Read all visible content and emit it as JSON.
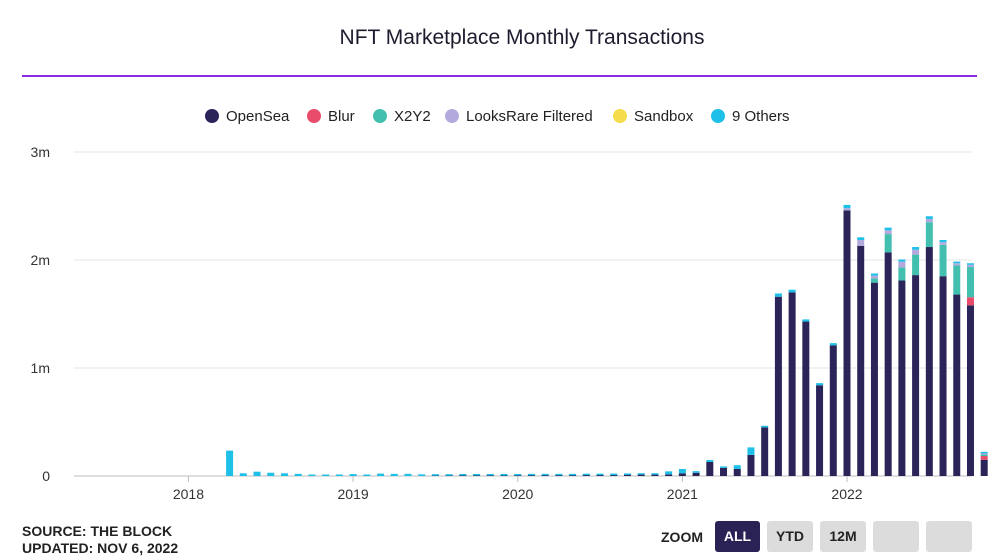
{
  "header": {
    "title": "NFT Marketplace Monthly Transactions"
  },
  "footer": {
    "source": "SOURCE: THE BLOCK",
    "updated": "UPDATED: NOV 6, 2022"
  },
  "zoom": {
    "label": "ZOOM",
    "buttons": [
      "ALL",
      "YTD",
      "12M",
      "",
      ""
    ],
    "active": "ALL"
  },
  "colors": {
    "OpenSea": "#2a2458",
    "Blur": "#e94b6b",
    "X2Y2": "#43bfb0",
    "LooksRare Filtered": "#b4a9dc",
    "Sandbox": "#f5dc4a",
    "9 Others": "#1ec0e8"
  },
  "chart_data": {
    "type": "bar",
    "stacked": true,
    "title": "NFT Marketplace Monthly Transactions",
    "xlabel": "",
    "ylabel": "",
    "ylim": [
      0,
      3000000
    ],
    "y_ticks": [
      "0",
      "1m",
      "2m",
      "3m"
    ],
    "x_ticks": [
      "2018",
      "2019",
      "2020",
      "2021",
      "2022"
    ],
    "grid": true,
    "legend_position": "top-center",
    "categories": [
      "2017-11",
      "2017-12",
      "2018-01",
      "2018-02",
      "2018-03",
      "2018-04",
      "2018-05",
      "2018-06",
      "2018-07",
      "2018-08",
      "2018-09",
      "2018-10",
      "2018-11",
      "2018-12",
      "2019-01",
      "2019-02",
      "2019-03",
      "2019-04",
      "2019-05",
      "2019-06",
      "2019-07",
      "2019-08",
      "2019-09",
      "2019-10",
      "2019-11",
      "2019-12",
      "2020-01",
      "2020-02",
      "2020-03",
      "2020-04",
      "2020-05",
      "2020-06",
      "2020-07",
      "2020-08",
      "2020-09",
      "2020-10",
      "2020-11",
      "2020-12",
      "2021-01",
      "2021-02",
      "2021-03",
      "2021-04",
      "2021-05",
      "2021-06",
      "2021-07",
      "2021-08",
      "2021-09",
      "2021-10",
      "2021-11",
      "2021-12",
      "2022-01",
      "2022-02",
      "2022-03",
      "2022-04",
      "2022-05",
      "2022-06",
      "2022-07",
      "2022-08",
      "2022-09",
      "2022-10",
      "2022-11"
    ],
    "series": [
      {
        "name": "OpenSea",
        "values": [
          0,
          0,
          0,
          0,
          0,
          0,
          0,
          0,
          0,
          0,
          0,
          0,
          0,
          0,
          0,
          0,
          0,
          0,
          0,
          0,
          3000,
          3000,
          5000,
          5000,
          5000,
          5000,
          5000,
          6000,
          6000,
          6000,
          6000,
          8000,
          8000,
          8000,
          10000,
          12000,
          12000,
          15000,
          25000,
          30000,
          130000,
          75000,
          65000,
          195000,
          450000,
          1660000,
          1700000,
          1430000,
          840000,
          1210000,
          2460000,
          2130000,
          1790000,
          2070000,
          1810000,
          1860000,
          2120000,
          1850000,
          1680000,
          1580000,
          150000
        ]
      },
      {
        "name": "Blur",
        "values": [
          0,
          0,
          0,
          0,
          0,
          0,
          0,
          0,
          0,
          0,
          0,
          0,
          0,
          0,
          0,
          0,
          0,
          0,
          0,
          0,
          0,
          0,
          0,
          0,
          0,
          0,
          0,
          0,
          0,
          0,
          0,
          0,
          0,
          0,
          0,
          0,
          0,
          0,
          0,
          0,
          0,
          0,
          0,
          0,
          0,
          0,
          0,
          0,
          0,
          0,
          0,
          0,
          0,
          0,
          0,
          0,
          0,
          0,
          0,
          75000,
          35000
        ]
      },
      {
        "name": "X2Y2",
        "values": [
          0,
          0,
          0,
          0,
          0,
          0,
          0,
          0,
          0,
          0,
          0,
          0,
          0,
          0,
          0,
          0,
          0,
          0,
          0,
          0,
          0,
          0,
          0,
          0,
          0,
          0,
          0,
          0,
          0,
          0,
          0,
          0,
          0,
          0,
          0,
          0,
          0,
          0,
          0,
          0,
          0,
          0,
          0,
          0,
          0,
          0,
          0,
          0,
          0,
          0,
          0,
          0,
          40000,
          170000,
          120000,
          190000,
          230000,
          290000,
          270000,
          280000,
          15000
        ]
      },
      {
        "name": "LooksRare Filtered",
        "values": [
          0,
          0,
          0,
          0,
          0,
          0,
          0,
          0,
          0,
          0,
          0,
          0,
          0,
          0,
          0,
          0,
          0,
          0,
          0,
          0,
          0,
          0,
          0,
          0,
          0,
          0,
          0,
          0,
          0,
          0,
          0,
          0,
          0,
          0,
          0,
          0,
          0,
          0,
          0,
          0,
          0,
          0,
          0,
          0,
          0,
          0,
          0,
          0,
          0,
          0,
          20000,
          55000,
          25000,
          35000,
          55000,
          45000,
          30000,
          25000,
          20000,
          20000,
          10000
        ]
      },
      {
        "name": "Sandbox",
        "values": [
          0,
          0,
          0,
          0,
          0,
          0,
          0,
          0,
          0,
          0,
          0,
          0,
          0,
          0,
          0,
          0,
          0,
          0,
          0,
          0,
          0,
          0,
          0,
          0,
          0,
          0,
          0,
          0,
          0,
          0,
          0,
          0,
          0,
          0,
          0,
          0,
          0,
          0,
          0,
          0,
          0,
          0,
          0,
          0,
          0,
          0,
          0,
          0,
          0,
          0,
          0,
          0,
          0,
          0,
          0,
          0,
          0,
          0,
          0,
          0,
          0
        ]
      },
      {
        "name": "9 Others",
        "values": [
          0,
          0,
          0,
          0,
          0,
          235000,
          25000,
          40000,
          30000,
          25000,
          20000,
          10000,
          12000,
          10000,
          18000,
          12000,
          22000,
          20000,
          20000,
          15000,
          10000,
          10000,
          8000,
          8000,
          5000,
          5000,
          12000,
          12000,
          10000,
          12000,
          12000,
          12000,
          12000,
          15000,
          12000,
          8000,
          12000,
          28000,
          40000,
          15000,
          18000,
          12000,
          35000,
          70000,
          15000,
          30000,
          25000,
          20000,
          20000,
          20000,
          30000,
          25000,
          20000,
          25000,
          20000,
          25000,
          25000,
          20000,
          15000,
          15000,
          10000
        ]
      }
    ]
  }
}
